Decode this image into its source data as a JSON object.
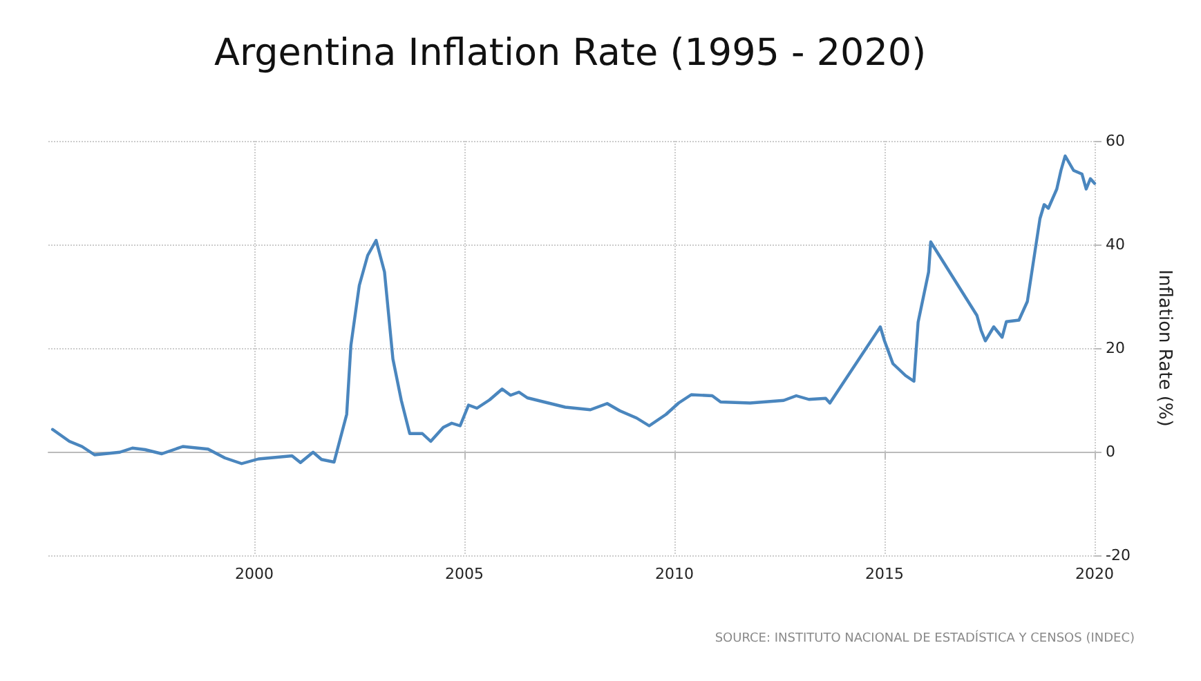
{
  "chart_data": {
    "type": "line",
    "title": "Argentina Inflation Rate (1995 - 2020)",
    "ylabel": "Inflation Rate (%)",
    "annotations": [
      "SOURCE: INSTITUTO NACIONAL DE ESTADÍSTICA Y CENSOS (INDEC)"
    ],
    "xlim": [
      1995.1,
      2020
    ],
    "xticks": [
      2000,
      2005,
      2010,
      2015,
      2020
    ],
    "ylim": [
      -20,
      60
    ],
    "yticks": [
      -20,
      0,
      20,
      40,
      60
    ],
    "grid": true,
    "marker": "none",
    "line_style": "solid",
    "series": [
      {
        "color": "#4a86be",
        "x": [
          1995.2,
          1995.6,
          1995.9,
          1996.2,
          1996.8,
          1997.1,
          1997.4,
          1997.8,
          1998.3,
          1998.9,
          1999.3,
          1999.7,
          2000.1,
          2000.9,
          2001.1,
          2001.4,
          2001.6,
          2001.9,
          2002.2,
          2002.3,
          2002.5,
          2002.7,
          2002.9,
          2003.1,
          2003.3,
          2003.5,
          2003.7,
          2004.0,
          2004.2,
          2004.5,
          2004.7,
          2004.9,
          2005.1,
          2005.3,
          2005.6,
          2005.9,
          2006.1,
          2006.3,
          2006.5,
          2007.0,
          2007.4,
          2008.0,
          2008.4,
          2008.7,
          2009.1,
          2009.4,
          2009.8,
          2010.1,
          2010.4,
          2010.9,
          2011.1,
          2011.8,
          2012.6,
          2012.9,
          2013.2,
          2013.6,
          2013.7,
          2014.9,
          2015.0,
          2015.2,
          2015.5,
          2015.7,
          2015.8,
          2016.05,
          2016.1,
          2017.2,
          2017.3,
          2017.4,
          2017.6,
          2017.8,
          2017.9,
          2018.2,
          2018.4,
          2018.7,
          2018.8,
          2018.9,
          2019.1,
          2019.2,
          2019.3,
          2019.5,
          2019.7,
          2019.8,
          2019.9,
          2020.0
        ],
        "values": [
          4.3,
          2.0,
          1.0,
          -0.6,
          -0.1,
          0.7,
          0.4,
          -0.4,
          1.0,
          0.5,
          -1.2,
          -2.3,
          -1.4,
          -0.8,
          -2.1,
          -0.1,
          -1.5,
          -2.0,
          7.2,
          20.5,
          32.1,
          37.9,
          40.8,
          34.7,
          17.9,
          9.9,
          3.5,
          3.5,
          2.0,
          4.7,
          5.5,
          5.0,
          9.0,
          8.4,
          10.0,
          12.1,
          10.9,
          11.5,
          10.4,
          9.4,
          8.6,
          8.1,
          9.3,
          7.9,
          6.5,
          5.0,
          7.2,
          9.4,
          11.0,
          10.8,
          9.6,
          9.4,
          9.9,
          10.8,
          10.1,
          10.3,
          9.4,
          24.1,
          21.4,
          17.0,
          14.7,
          13.6,
          25.0,
          34.7,
          40.5,
          26.3,
          23.4,
          21.4,
          24.1,
          22.1,
          25.1,
          25.4,
          29.0,
          45.0,
          47.7,
          47.0,
          50.7,
          54.3,
          57.1,
          54.3,
          53.6,
          50.7,
          52.7,
          51.8
        ]
      }
    ]
  }
}
